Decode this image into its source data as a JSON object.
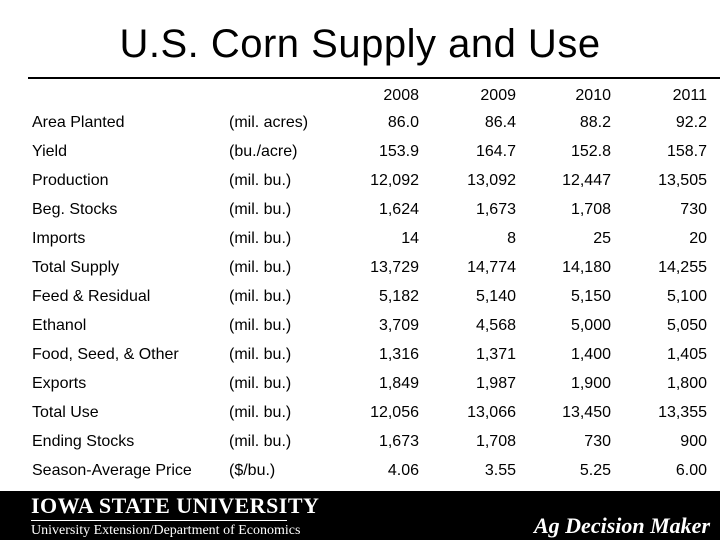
{
  "title": "U.S. Corn Supply and Use",
  "table": {
    "years": [
      "2008",
      "2009",
      "2010",
      "2011"
    ],
    "rows": [
      {
        "label": "Area Planted",
        "unit": "(mil. acres)",
        "values": [
          "86.0",
          "86.4",
          "88.2",
          "92.2"
        ]
      },
      {
        "label": "Yield",
        "unit": "(bu./acre)",
        "values": [
          "153.9",
          "164.7",
          "152.8",
          "158.7"
        ]
      },
      {
        "label": "Production",
        "unit": "(mil. bu.)",
        "values": [
          "12,092",
          "13,092",
          "12,447",
          "13,505"
        ]
      },
      {
        "label": "Beg. Stocks",
        "unit": "(mil. bu.)",
        "values": [
          "1,624",
          "1,673",
          "1,708",
          "730"
        ]
      },
      {
        "label": "Imports",
        "unit": "(mil. bu.)",
        "values": [
          "14",
          "8",
          "25",
          "20"
        ]
      },
      {
        "label": "Total Supply",
        "unit": "(mil. bu.)",
        "values": [
          "13,729",
          "14,774",
          "14,180",
          "14,255"
        ]
      },
      {
        "label": "Feed & Residual",
        "unit": "(mil. bu.)",
        "values": [
          "5,182",
          "5,140",
          "5,150",
          "5,100"
        ]
      },
      {
        "label": "Ethanol",
        "unit": "(mil. bu.)",
        "values": [
          "3,709",
          "4,568",
          "5,000",
          "5,050"
        ]
      },
      {
        "label": "Food, Seed, & Other",
        "unit": "(mil. bu.)",
        "values": [
          "1,316",
          "1,371",
          "1,400",
          "1,405"
        ]
      },
      {
        "label": "Exports",
        "unit": "(mil. bu.)",
        "values": [
          "1,849",
          "1,987",
          "1,900",
          "1,800"
        ]
      },
      {
        "label": "Total Use",
        "unit": "(mil. bu.)",
        "values": [
          "12,056",
          "13,066",
          "13,450",
          "13,355"
        ]
      },
      {
        "label": "Ending Stocks",
        "unit": "(mil. bu.)",
        "values": [
          "1,673",
          "1,708",
          "730",
          "900"
        ]
      },
      {
        "label": "Season-Average Price",
        "unit": "($/bu.)",
        "values": [
          "4.06",
          "3.55",
          "5.25",
          "6.00"
        ]
      }
    ]
  },
  "footer": {
    "university": "IOWA STATE UNIVERSITY",
    "department": "University Extension/Department of Economics",
    "brand": "Ag Decision Maker"
  },
  "colors": {
    "background": "#ffffff",
    "text": "#000000",
    "footer_background": "#000000",
    "footer_text": "#ffffff"
  }
}
